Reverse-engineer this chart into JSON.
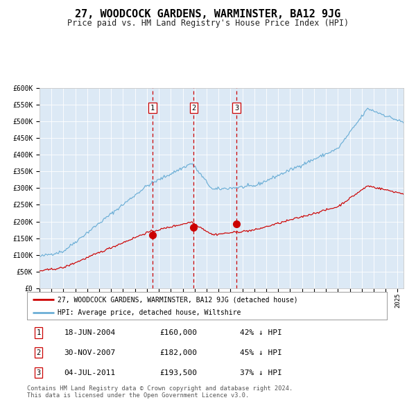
{
  "title": "27, WOODCOCK GARDENS, WARMINSTER, BA12 9JG",
  "subtitle": "Price paid vs. HM Land Registry's House Price Index (HPI)",
  "title_fontsize": 11,
  "subtitle_fontsize": 8.5,
  "background_color": "#dce9f5",
  "plot_bg_color": "#dce9f5",
  "fig_bg_color": "#ffffff",
  "legend_line1": "27, WOODCOCK GARDENS, WARMINSTER, BA12 9JG (detached house)",
  "legend_line2": "HPI: Average price, detached house, Wiltshire",
  "sale1_date": 2004.46,
  "sale1_price": 160000,
  "sale1_label": "1",
  "sale1_text": "18-JUN-2004",
  "sale1_price_text": "£160,000",
  "sale1_hpi": "42% ↓ HPI",
  "sale2_date": 2007.92,
  "sale2_price": 182000,
  "sale2_label": "2",
  "sale2_text": "30-NOV-2007",
  "sale2_price_text": "£182,000",
  "sale2_hpi": "45% ↓ HPI",
  "sale3_date": 2011.5,
  "sale3_price": 193500,
  "sale3_label": "3",
  "sale3_text": "04-JUL-2011",
  "sale3_price_text": "£193,500",
  "sale3_hpi": "37% ↓ HPI",
  "hpi_color": "#6baed6",
  "price_color": "#cc0000",
  "vline_color": "#cc0000",
  "marker_color": "#cc0000",
  "footer_line1": "Contains HM Land Registry data © Crown copyright and database right 2024.",
  "footer_line2": "This data is licensed under the Open Government Licence v3.0.",
  "ylim_min": 0,
  "ylim_max": 600000,
  "xmin": 1995,
  "xmax": 2025.5,
  "yticks": [
    0,
    50000,
    100000,
    150000,
    200000,
    250000,
    300000,
    350000,
    400000,
    450000,
    500000,
    550000,
    600000
  ],
  "ylabels": [
    "£0",
    "£50K",
    "£100K",
    "£150K",
    "£200K",
    "£250K",
    "£300K",
    "£350K",
    "£400K",
    "£450K",
    "£500K",
    "£550K",
    "£600K"
  ]
}
